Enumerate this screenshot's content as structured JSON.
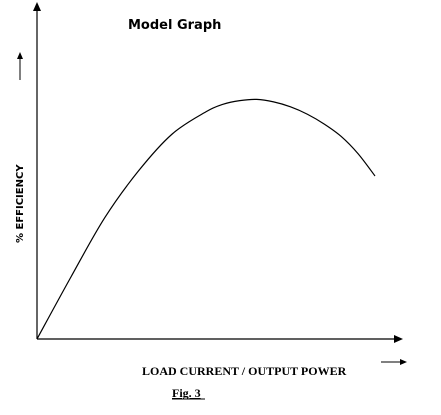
{
  "chart_data": {
    "type": "line",
    "title": "Model Graph",
    "xlabel": "LOAD CURRENT / OUTPUT POWER",
    "ylabel": "% EFFICIENCY",
    "caption": "Fig. 3",
    "xlim": [
      0,
      100
    ],
    "ylim": [
      0,
      100
    ],
    "grid": false,
    "legend": "none",
    "series": [
      {
        "x": [
          0,
          10,
          20,
          30,
          40,
          50,
          55,
          60,
          65,
          70,
          75,
          80,
          85,
          90,
          95,
          100
        ],
        "y": [
          0,
          25,
          49,
          68,
          83,
          92,
          95,
          96.5,
          97,
          96,
          94,
          91,
          87,
          82,
          75,
          66
        ],
        "color": "#000000"
      }
    ]
  }
}
